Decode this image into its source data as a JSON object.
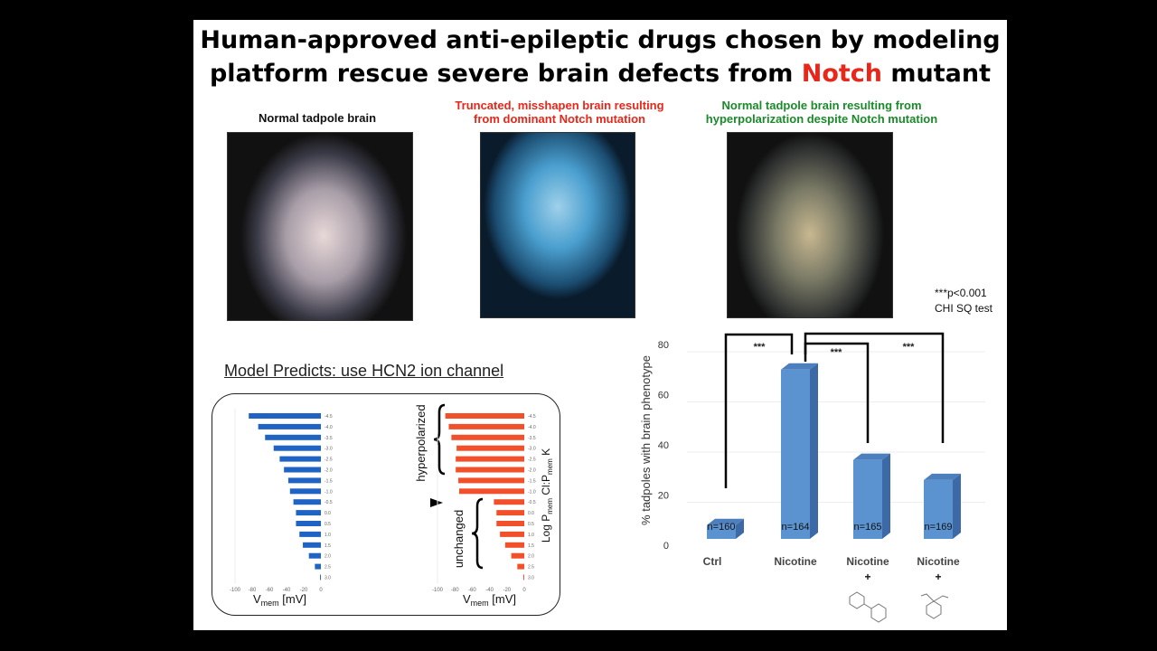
{
  "title": {
    "line1": "Human-approved anti-epileptic drugs chosen by modeling",
    "line2_pre": "platform rescue severe brain defects from ",
    "line2_red": "Notch",
    "line2_post": " mutant"
  },
  "captions": {
    "normal": "Normal tadpole brain",
    "truncated_1": "Truncated, misshapen brain resulting",
    "truncated_2": "from dominant Notch mutation",
    "rescued_1": "Normal tadpole brain resulting from",
    "rescued_2": "hyperpolarization despite Notch mutation"
  },
  "stats_note": {
    "line1": "***p<0.001",
    "line2": "CHI SQ test"
  },
  "model": {
    "title": "Model Predicts: use HCN2 ion channel",
    "hyper_label": "hyperpolarized",
    "unchanged_label": "unchanged",
    "yaxis_label": "Log P",
    "yaxis_sub": "mem",
    "yaxis_mid": " Cl:P",
    "yaxis_sub2": "mem",
    "yaxis_end": " K",
    "xaxis_label": "V",
    "xaxis_sub": "mem",
    "xaxis_unit": " [mV]"
  },
  "colors": {
    "blue": "#1f63c4",
    "orange": "#f2502a",
    "bar3d": "#5b8fcb",
    "red": "#e8261a",
    "green": "#1a8a2a"
  },
  "chart_data": [
    {
      "type": "bar",
      "orientation": "horizontal",
      "name": "model-left",
      "xlim": [
        -100,
        0
      ],
      "xticks": [
        "-100",
        "-80",
        "-60",
        "-40",
        "-20",
        "0"
      ],
      "categories": [
        "-4.5",
        "-4.0",
        "-3.5",
        "-3.0",
        "-2.5",
        "-2.0",
        "-1.5",
        "-1.0",
        "-0.5",
        "0.0",
        "0.5",
        "1.0",
        "1.5",
        "2.0",
        "2.5",
        "3.0"
      ],
      "values": [
        -84,
        -73,
        -65,
        -55,
        -48,
        -43,
        -38,
        -36,
        -32,
        -29,
        -29,
        -25,
        -21,
        -14,
        -7,
        -1
      ]
    },
    {
      "type": "bar",
      "orientation": "horizontal",
      "name": "model-right",
      "xlim": [
        -100,
        0
      ],
      "xticks": [
        "-100",
        "-80",
        "-60",
        "-40",
        "-20",
        "0"
      ],
      "categories": [
        "-4.5",
        "-4.0",
        "-3.5",
        "-3.0",
        "-2.5",
        "-2.0",
        "-1.5",
        "-1.0",
        "-0.5",
        "0.0",
        "0.5",
        "1.0",
        "1.5",
        "2.0",
        "2.5",
        "3.0"
      ],
      "values": [
        -91,
        -87,
        -84,
        -78,
        -79,
        -79,
        -76,
        -75,
        -35,
        -32,
        -32,
        -28,
        -22,
        -15,
        -8,
        -1
      ]
    },
    {
      "type": "bar",
      "name": "phenotype",
      "ylabel": "% tadpoles with brain phenotype",
      "ylim": [
        0,
        80
      ],
      "yticks": [
        "0",
        "20",
        "40",
        "60",
        "80"
      ],
      "categories": [
        "Ctrl",
        "Nicotine",
        "Nicotine",
        "Nicotine"
      ],
      "plus": [
        "",
        "",
        "+",
        "+"
      ],
      "values": [
        8,
        70,
        34,
        26
      ],
      "n_labels": [
        "n=160",
        "n=164",
        "n=165",
        "n=169"
      ],
      "significance": [
        "***",
        "***",
        "***"
      ]
    }
  ]
}
